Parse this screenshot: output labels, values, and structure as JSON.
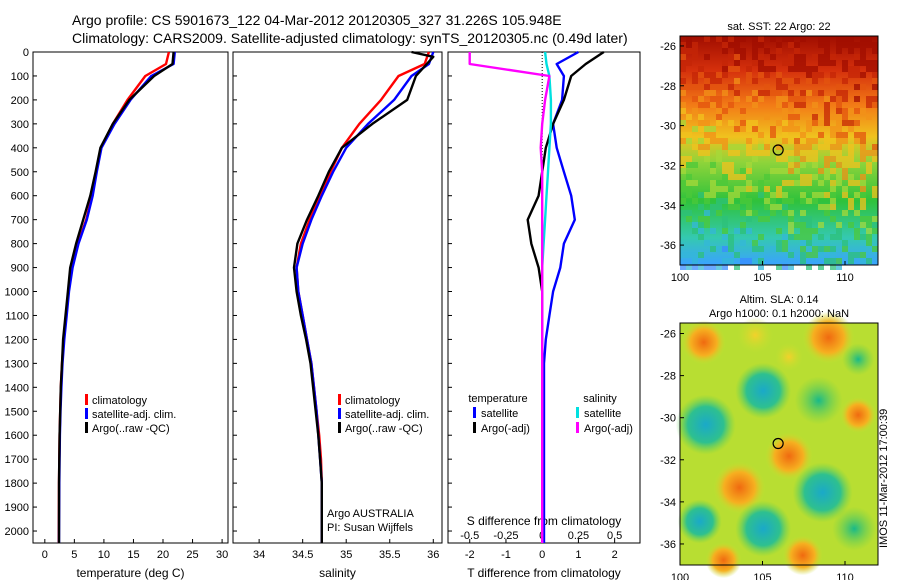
{
  "header": {
    "line1": "Argo profile: CS 5901673_122 04-Mar-2012 20120305_327 31.226S 105.948E",
    "line2": "Climatology: CARS2009. Satellite-adjusted climatology: synTS_20120305.nc (0.49d later)"
  },
  "side_stamp": "IMOS 11-Mar-2012 17:00:39",
  "colors": {
    "climatology": "#ff0000",
    "satellite": "#0000ff",
    "argo": "#000000",
    "s_sat": "#00e0e0",
    "s_argo": "#ff00ff"
  },
  "chart_data": [
    {
      "type": "line",
      "xlabel": "temperature (deg C)",
      "ylim": [
        2050,
        0
      ],
      "xlim": [
        -2,
        31
      ],
      "xticks": [
        "0",
        "5",
        "10",
        "15",
        "20",
        "25",
        "30"
      ],
      "yticks": [
        "0",
        "100",
        "200",
        "300",
        "400",
        "500",
        "600",
        "700",
        "800",
        "900",
        "1000",
        "1100",
        "1200",
        "1300",
        "1400",
        "1500",
        "1600",
        "1700",
        "1800",
        "1900",
        "2000"
      ],
      "legend": [
        "climatology",
        "satellite-adj. clim.",
        "Argo(..raw -QC)"
      ],
      "series": [
        {
          "name": "climatology",
          "x": [
            21,
            20.5,
            17,
            14,
            11.5,
            9.5,
            8.7,
            8,
            7,
            5.6,
            4.6,
            4,
            3.6,
            3.2,
            2.9,
            2.7,
            2.6,
            2.5,
            2.45,
            2.4,
            2.35
          ],
          "y": [
            0,
            50,
            100,
            200,
            300,
            400,
            500,
            600,
            700,
            800,
            900,
            1000,
            1100,
            1200,
            1300,
            1400,
            1500,
            1600,
            1700,
            1800,
            2050
          ]
        },
        {
          "name": "satellite-adj. clim.",
          "x": [
            22,
            21.8,
            18,
            14.5,
            11.8,
            9.6,
            8.8,
            8.1,
            7.1,
            5.7,
            4.7,
            4.1,
            3.7,
            3.3,
            3.0,
            2.8,
            2.65,
            2.55,
            2.5,
            2.45,
            2.4
          ],
          "y": [
            0,
            50,
            100,
            200,
            300,
            400,
            500,
            600,
            700,
            800,
            900,
            1000,
            1100,
            1200,
            1300,
            1400,
            1500,
            1600,
            1700,
            1800,
            2050
          ]
        },
        {
          "name": "Argo(..raw -QC)",
          "x": [
            21.8,
            21.6,
            18.5,
            14.3,
            11.5,
            9.4,
            8.6,
            7.7,
            6.5,
            5.3,
            4.3,
            3.9,
            3.5,
            3.1,
            2.9,
            2.7,
            2.6,
            2.5,
            2.45,
            2.4,
            2.4
          ],
          "y": [
            0,
            50,
            100,
            200,
            300,
            400,
            500,
            600,
            700,
            800,
            900,
            1000,
            1100,
            1200,
            1300,
            1400,
            1500,
            1600,
            1700,
            1800,
            2050
          ]
        }
      ]
    },
    {
      "type": "line",
      "xlabel": "salinity",
      "ylim": [
        2050,
        0
      ],
      "xlim": [
        33.7,
        36.1
      ],
      "xticks": [
        "34",
        "34.5",
        "35",
        "35.5",
        "36"
      ],
      "legend": [
        "climatology",
        "satellite-adj. clim.",
        "Argo(..raw -QC)"
      ],
      "annotation": [
        "Argo AUSTRALIA",
        "PI: Susan Wijffels"
      ],
      "series": [
        {
          "name": "climatology",
          "x": [
            35.95,
            35.9,
            35.6,
            35.4,
            35.15,
            34.95,
            34.82,
            34.7,
            34.58,
            34.48,
            34.43,
            34.45,
            34.5,
            34.55,
            34.6,
            34.63,
            34.66,
            34.69,
            34.71,
            34.72,
            34.72
          ],
          "y": [
            0,
            50,
            100,
            200,
            300,
            400,
            500,
            600,
            700,
            800,
            900,
            1000,
            1100,
            1200,
            1300,
            1400,
            1500,
            1600,
            1700,
            1800,
            2050
          ]
        },
        {
          "name": "satellite-adj. clim.",
          "x": [
            36.0,
            35.95,
            35.75,
            35.55,
            35.25,
            35.0,
            34.85,
            34.72,
            34.6,
            34.5,
            34.43,
            34.45,
            34.5,
            34.55,
            34.6,
            34.63,
            34.66,
            34.68,
            34.7,
            34.72,
            34.72
          ],
          "y": [
            0,
            50,
            100,
            200,
            300,
            400,
            500,
            600,
            700,
            800,
            900,
            1000,
            1100,
            1200,
            1300,
            1400,
            1500,
            1600,
            1700,
            1800,
            2050
          ]
        },
        {
          "name": "Argo(..raw -QC)",
          "x": [
            35.75,
            36.0,
            35.8,
            35.7,
            35.3,
            34.95,
            34.8,
            34.68,
            34.55,
            34.44,
            34.4,
            34.43,
            34.48,
            34.54,
            34.59,
            34.62,
            34.65,
            34.68,
            34.7,
            34.72,
            34.72
          ],
          "y": [
            0,
            20,
            100,
            200,
            300,
            400,
            500,
            600,
            700,
            800,
            900,
            1000,
            1100,
            1200,
            1300,
            1400,
            1500,
            1600,
            1700,
            1800,
            2050
          ]
        }
      ]
    },
    {
      "type": "line",
      "xlabel": "T difference from climatology",
      "x2label": "S difference from climatology",
      "ylim": [
        2050,
        0
      ],
      "xlim": [
        -2.6,
        2.7
      ],
      "xticks": [
        "-2",
        "-1",
        "0",
        "1",
        "2"
      ],
      "x2ticks": [
        "-0.5",
        "-0.25",
        "0",
        "0.25",
        "0.5"
      ],
      "legend_headers": [
        "temperature",
        "salinity"
      ],
      "legend": [
        "satellite",
        "Argo(-adj)",
        "satellite",
        "Argo(-adj)"
      ],
      "series": [
        {
          "name": "satellite",
          "x": [
            1.0,
            0.4,
            0.6,
            0.55,
            0.3,
            0.4,
            0.6,
            0.8,
            0.9,
            0.6,
            0.5,
            0.3,
            0.2,
            0.1,
            0.05,
            0.05,
            0.05,
            0.05,
            0.05,
            0.05,
            0.05
          ],
          "y": [
            0,
            50,
            100,
            200,
            300,
            400,
            500,
            600,
            700,
            800,
            900,
            1000,
            1100,
            1200,
            1300,
            1400,
            1500,
            1600,
            1700,
            1800,
            2050
          ]
        },
        {
          "name": "Argo(-adj)",
          "x": [
            1.7,
            1.2,
            0.8,
            0.6,
            0.3,
            0.1,
            0.0,
            -0.1,
            -0.4,
            -0.3,
            -0.1,
            0.0,
            0.0,
            0.0,
            0.0,
            0.0,
            0.0,
            0.0,
            0.0,
            0.0,
            0.0
          ],
          "y": [
            0,
            50,
            100,
            200,
            300,
            400,
            500,
            600,
            700,
            800,
            900,
            1000,
            1100,
            1200,
            1300,
            1400,
            1500,
            1600,
            1700,
            1800,
            2050
          ]
        },
        {
          "name": "satellite",
          "x": [
            0.02,
            0.03,
            0.05,
            0.06,
            0.06,
            0.05,
            0.04,
            0.03,
            0.02,
            0.01,
            0.0,
            0.0,
            0.0,
            0.0,
            0.0,
            0.0,
            0.0,
            0.0,
            0.0,
            0.0,
            0.0
          ],
          "y": [
            0,
            50,
            100,
            200,
            300,
            400,
            500,
            600,
            700,
            800,
            900,
            1000,
            1100,
            1200,
            1300,
            1400,
            1500,
            1600,
            1700,
            1800,
            2050
          ]
        },
        {
          "name": "Argo(-adj)",
          "x": [
            -0.5,
            -0.5,
            0.05,
            0.02,
            0.0,
            -0.01,
            0.0,
            0.0,
            0.0,
            0.0,
            0.0,
            0.0,
            0.0,
            0.0,
            0.0,
            0.0,
            0.0,
            0.0,
            0.0,
            0.0,
            0.0
          ],
          "y": [
            0,
            50,
            100,
            200,
            300,
            400,
            500,
            600,
            700,
            800,
            900,
            1000,
            1100,
            1200,
            1300,
            1400,
            1500,
            1600,
            1700,
            1800,
            2050
          ]
        }
      ]
    },
    {
      "type": "heatmap",
      "title": "sat. SST: 22 Argo: 22",
      "xlim": [
        100,
        112
      ],
      "ylim": [
        -37,
        -25.5
      ],
      "xticks": [
        "100",
        "105",
        "110"
      ],
      "yticks": [
        "-26",
        "-28",
        "-30",
        "-32",
        "-34",
        "-36"
      ],
      "marker": {
        "x": 105.948,
        "y": -31.226
      }
    },
    {
      "type": "heatmap",
      "title": [
        "Altim. SLA: 0.14",
        "Argo h1000: 0.1 h2000: NaN"
      ],
      "xlim": [
        100,
        112
      ],
      "ylim": [
        -37,
        -25.5
      ],
      "xticks": [
        "100",
        "105",
        "110"
      ],
      "yticks": [
        "-26",
        "-28",
        "-30",
        "-32",
        "-34",
        "-36"
      ],
      "marker": {
        "x": 105.948,
        "y": -31.226
      }
    }
  ]
}
